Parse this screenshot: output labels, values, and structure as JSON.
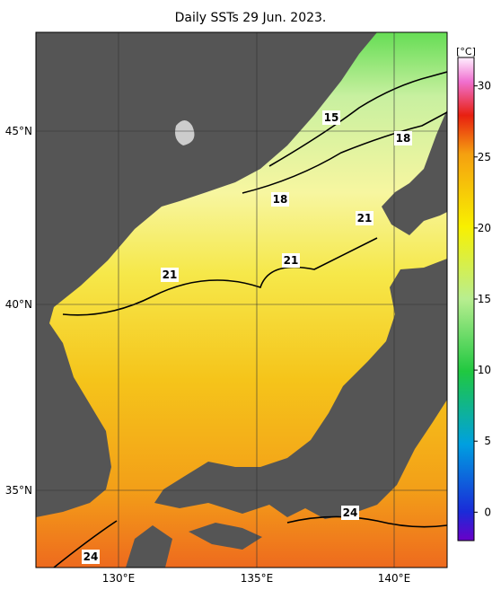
{
  "title": "Daily SSTs 29 Jun. 2023.",
  "lon_labels": [
    "130°E",
    "135°E",
    "140°E"
  ],
  "lat_labels": [
    "45°N",
    "40°N",
    "35°N"
  ],
  "colorbar": {
    "unit": "[°C]",
    "ticks": [
      30,
      25,
      20,
      15,
      10,
      5,
      0
    ],
    "range": [
      -2,
      32
    ]
  },
  "contour_labels": [
    "15",
    "18",
    "18",
    "21",
    "21",
    "21",
    "24",
    "24"
  ]
}
